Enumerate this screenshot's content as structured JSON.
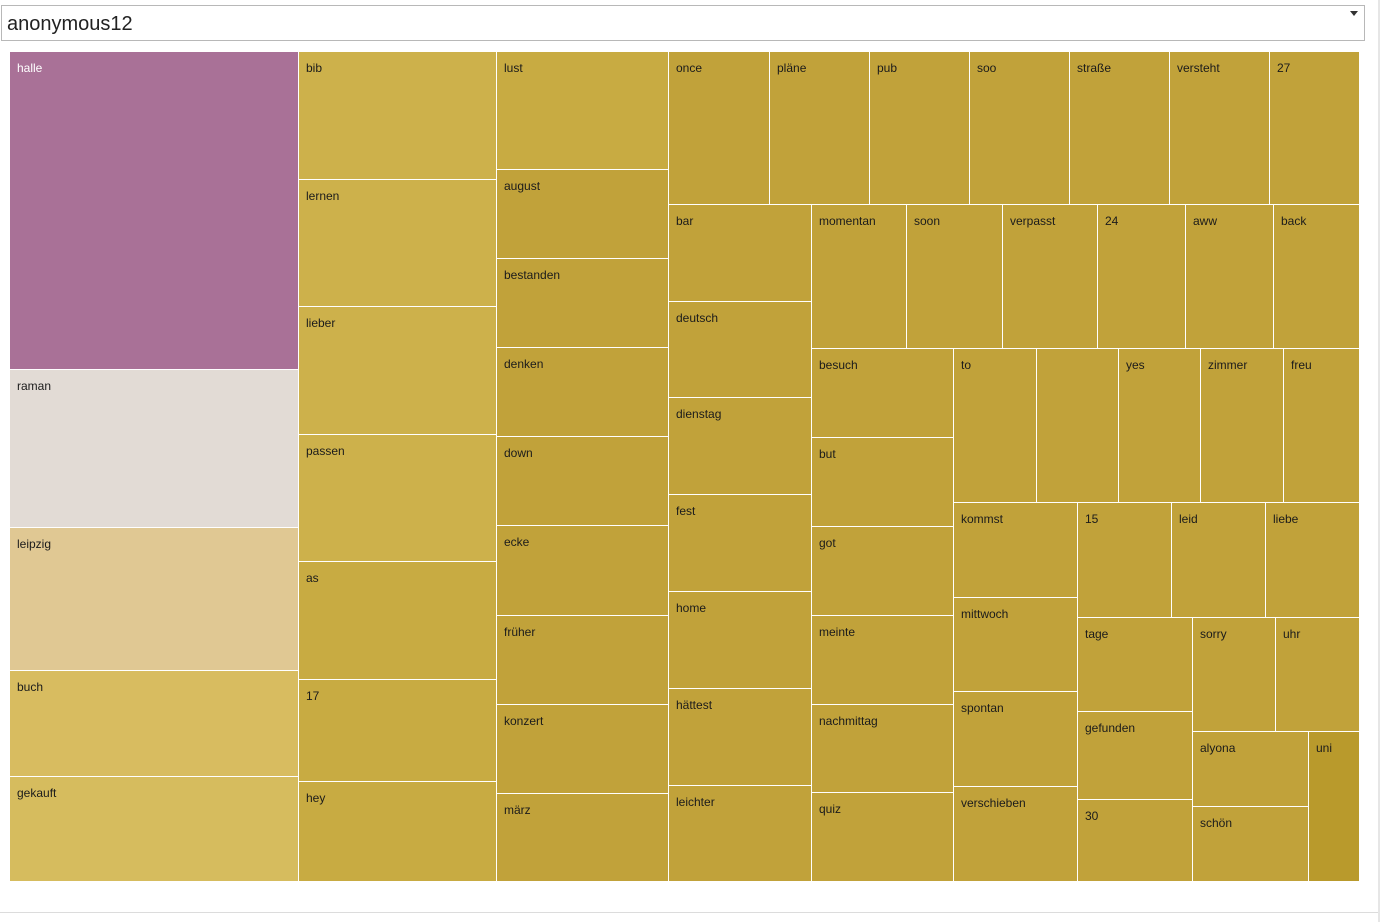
{
  "selector": {
    "value": "anonymous12",
    "icon": "chevron-down-icon"
  },
  "colors": {
    "halle": "#a97197",
    "raman": "#e2dbd5",
    "leipzig": "#e0c893",
    "buch": "#d8bc60",
    "gekauft": "#d6bc5e",
    "light_gold": "#cdb14b",
    "mid_gold": "#c8ab42",
    "gold": "#c1a23a",
    "dark_gold": "#b99a2c",
    "border": "#ffffff"
  },
  "chart_data": {
    "type": "treemap",
    "title": "",
    "legend": "none",
    "tiles": [
      {
        "label": "halle",
        "color_key": "halle",
        "dark": true
      },
      {
        "label": "raman",
        "color_key": "raman"
      },
      {
        "label": "leipzig",
        "color_key": "leipzig"
      },
      {
        "label": "buch",
        "color_key": "buch"
      },
      {
        "label": "gekauft",
        "color_key": "gekauft"
      },
      {
        "label": "bib",
        "color_key": "light_gold"
      },
      {
        "label": "lernen",
        "color_key": "light_gold"
      },
      {
        "label": "lieber",
        "color_key": "light_gold"
      },
      {
        "label": "passen",
        "color_key": "light_gold"
      },
      {
        "label": "as",
        "color_key": "mid_gold"
      },
      {
        "label": "17",
        "color_key": "mid_gold"
      },
      {
        "label": "hey",
        "color_key": "mid_gold"
      },
      {
        "label": "lust",
        "color_key": "mid_gold"
      },
      {
        "label": "august",
        "color_key": "gold"
      },
      {
        "label": "bestanden",
        "color_key": "gold"
      },
      {
        "label": "denken",
        "color_key": "gold"
      },
      {
        "label": "down",
        "color_key": "gold"
      },
      {
        "label": "ecke",
        "color_key": "gold"
      },
      {
        "label": "früher",
        "color_key": "gold"
      },
      {
        "label": "konzert",
        "color_key": "gold"
      },
      {
        "label": "märz",
        "color_key": "gold"
      },
      {
        "label": "once",
        "color_key": "gold"
      },
      {
        "label": "pläne",
        "color_key": "gold"
      },
      {
        "label": "pub",
        "color_key": "gold"
      },
      {
        "label": "soo",
        "color_key": "gold"
      },
      {
        "label": "straße",
        "color_key": "gold"
      },
      {
        "label": "versteht",
        "color_key": "gold"
      },
      {
        "label": "27",
        "color_key": "gold"
      },
      {
        "label": "bar",
        "color_key": "gold"
      },
      {
        "label": "deutsch",
        "color_key": "gold"
      },
      {
        "label": "dienstag",
        "color_key": "gold"
      },
      {
        "label": "fest",
        "color_key": "gold"
      },
      {
        "label": "home",
        "color_key": "gold"
      },
      {
        "label": "hättest",
        "color_key": "gold"
      },
      {
        "label": "leichter",
        "color_key": "gold"
      },
      {
        "label": "momentan",
        "color_key": "gold"
      },
      {
        "label": "soon",
        "color_key": "gold"
      },
      {
        "label": "verpasst",
        "color_key": "gold"
      },
      {
        "label": "24",
        "color_key": "gold"
      },
      {
        "label": "aww",
        "color_key": "gold"
      },
      {
        "label": "back",
        "color_key": "gold"
      },
      {
        "label": "besuch",
        "color_key": "gold"
      },
      {
        "label": "but",
        "color_key": "gold"
      },
      {
        "label": "got",
        "color_key": "gold"
      },
      {
        "label": "meinte",
        "color_key": "gold"
      },
      {
        "label": "nachmittag",
        "color_key": "gold"
      },
      {
        "label": "quiz",
        "color_key": "gold"
      },
      {
        "label": "to",
        "color_key": "gold"
      },
      {
        "label": "",
        "color_key": "gold"
      },
      {
        "label": "yes",
        "color_key": "gold"
      },
      {
        "label": "zimmer",
        "color_key": "gold"
      },
      {
        "label": "freu",
        "color_key": "gold"
      },
      {
        "label": "kommst",
        "color_key": "gold"
      },
      {
        "label": "mittwoch",
        "color_key": "gold"
      },
      {
        "label": "spontan",
        "color_key": "gold"
      },
      {
        "label": "verschieben",
        "color_key": "gold"
      },
      {
        "label": "15",
        "color_key": "gold"
      },
      {
        "label": "leid",
        "color_key": "gold"
      },
      {
        "label": "liebe",
        "color_key": "gold"
      },
      {
        "label": "tage",
        "color_key": "gold"
      },
      {
        "label": "gefunden",
        "color_key": "gold"
      },
      {
        "label": "30",
        "color_key": "gold"
      },
      {
        "label": "sorry",
        "color_key": "gold"
      },
      {
        "label": "uhr",
        "color_key": "gold"
      },
      {
        "label": "alyona",
        "color_key": "gold"
      },
      {
        "label": "schön",
        "color_key": "gold"
      },
      {
        "label": "uni",
        "color_key": "dark_gold"
      }
    ]
  }
}
